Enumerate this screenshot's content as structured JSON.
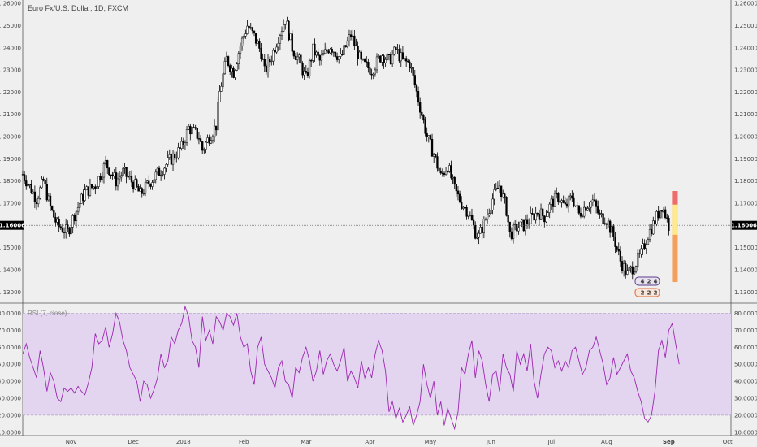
{
  "chart_data": [
    {
      "type": "candlestick",
      "title": "Euro Fx/U.S. Dollar, 1D, FXCM",
      "symbol": "Euro Fx/U.S. Dollar",
      "interval": "1D",
      "source": "FXCM",
      "ylim": [
        1.125,
        1.2615
      ],
      "y_ticks": [
        "1.13000",
        "1.14000",
        "1.15000",
        "1.16000",
        "1.17000",
        "1.18000",
        "1.19000",
        "1.20000",
        "1.21000",
        "1.22000",
        "1.23000",
        "1.24000",
        "1.25000",
        "1.26000"
      ],
      "y_tick_values": [
        1.13,
        1.14,
        1.15,
        1.16,
        1.17,
        1.18,
        1.19,
        1.2,
        1.21,
        1.22,
        1.23,
        1.24,
        1.25,
        1.26
      ],
      "x_ticks": [
        "Nov",
        "Dec",
        "2018",
        "Feb",
        "Mar",
        "Apr",
        "May",
        "Jun",
        "Jul",
        "Aug",
        "Sep",
        "Oct"
      ],
      "x_tick_index": [
        28,
        64,
        93,
        128,
        164,
        201,
        236,
        271,
        306,
        338,
        374,
        408
      ],
      "last_price": 1.16006,
      "last_price_label": "1.16006",
      "close_path": [
        [
          0,
          1.183
        ],
        [
          8,
          1.172
        ],
        [
          12,
          1.18
        ],
        [
          16,
          1.168
        ],
        [
          20,
          1.16
        ],
        [
          26,
          1.157
        ],
        [
          30,
          1.165
        ],
        [
          36,
          1.175
        ],
        [
          42,
          1.178
        ],
        [
          48,
          1.188
        ],
        [
          54,
          1.18
        ],
        [
          58,
          1.184
        ],
        [
          64,
          1.179
        ],
        [
          68,
          1.174
        ],
        [
          74,
          1.18
        ],
        [
          80,
          1.185
        ],
        [
          86,
          1.19
        ],
        [
          92,
          1.195
        ],
        [
          96,
          1.204
        ],
        [
          102,
          1.2
        ],
        [
          104,
          1.194
        ],
        [
          108,
          1.2
        ],
        [
          112,
          1.205
        ],
        [
          114,
          1.22
        ],
        [
          118,
          1.235
        ],
        [
          122,
          1.229
        ],
        [
          126,
          1.241
        ],
        [
          130,
          1.25
        ],
        [
          134,
          1.245
        ],
        [
          138,
          1.238
        ],
        [
          140,
          1.229
        ],
        [
          144,
          1.236
        ],
        [
          148,
          1.245
        ],
        [
          152,
          1.253
        ],
        [
          156,
          1.24
        ],
        [
          160,
          1.234
        ],
        [
          164,
          1.226
        ],
        [
          168,
          1.239
        ],
        [
          172,
          1.234
        ],
        [
          178,
          1.241
        ],
        [
          184,
          1.235
        ],
        [
          190,
          1.246
        ],
        [
          196,
          1.233
        ],
        [
          202,
          1.23
        ],
        [
          208,
          1.237
        ],
        [
          212,
          1.234
        ],
        [
          216,
          1.239
        ],
        [
          220,
          1.234
        ],
        [
          224,
          1.233
        ],
        [
          228,
          1.22
        ],
        [
          234,
          1.2
        ],
        [
          238,
          1.192
        ],
        [
          242,
          1.182
        ],
        [
          246,
          1.187
        ],
        [
          250,
          1.176
        ],
        [
          254,
          1.17
        ],
        [
          258,
          1.166
        ],
        [
          262,
          1.157
        ],
        [
          264,
          1.155
        ],
        [
          268,
          1.163
        ],
        [
          272,
          1.172
        ],
        [
          276,
          1.178
        ],
        [
          280,
          1.167
        ],
        [
          282,
          1.156
        ],
        [
          286,
          1.159
        ],
        [
          290,
          1.16
        ],
        [
          294,
          1.163
        ],
        [
          298,
          1.166
        ],
        [
          302,
          1.164
        ],
        [
          306,
          1.17
        ],
        [
          310,
          1.173
        ],
        [
          314,
          1.168
        ],
        [
          318,
          1.173
        ],
        [
          322,
          1.165
        ],
        [
          326,
          1.169
        ],
        [
          330,
          1.171
        ],
        [
          334,
          1.164
        ],
        [
          338,
          1.163
        ],
        [
          342,
          1.155
        ],
        [
          346,
          1.144
        ],
        [
          350,
          1.138
        ],
        [
          354,
          1.142
        ],
        [
          358,
          1.147
        ],
        [
          362,
          1.156
        ],
        [
          366,
          1.162
        ],
        [
          370,
          1.169
        ],
        [
          372,
          1.165
        ],
        [
          374,
          1.16
        ]
      ],
      "hist_bar": {
        "from": 1.1755,
        "to": 1.1345,
        "mark": 1.158
      },
      "badges": [
        [
          "4",
          "2",
          "4"
        ],
        [
          "2",
          "2",
          "2"
        ]
      ],
      "colors": {
        "candle": "#000000",
        "hist_red": "#f06b6b",
        "hist_yellow": "#ffe98a",
        "hist_orange": "#f5a05a",
        "price_line": "#555555"
      }
    },
    {
      "type": "line",
      "title": "RSI (7, close)",
      "ylim": [
        8.0,
        85.0
      ],
      "y_ticks": [
        "10.0000",
        "20.0000",
        "30.0000",
        "40.0000",
        "50.0000",
        "60.0000",
        "70.0000",
        "80.0000"
      ],
      "y_tick_values": [
        10,
        20,
        30,
        40,
        50,
        60,
        70,
        80
      ],
      "band": [
        20,
        80
      ],
      "colors": {
        "line": "#9c27b0",
        "band": "#e3d5f0"
      },
      "series": [
        {
          "x_step": 2,
          "values": [
            56,
            62,
            54,
            48,
            42,
            58,
            48,
            34,
            45,
            40,
            30,
            28,
            36,
            34,
            36,
            33,
            37,
            34,
            32,
            39,
            48,
            68,
            62,
            64,
            72,
            60,
            68,
            80,
            75,
            64,
            58,
            48,
            44,
            40,
            28,
            40,
            38,
            30,
            35,
            42,
            56,
            48,
            52,
            66,
            62,
            70,
            74,
            84,
            78,
            64,
            60,
            48,
            78,
            64,
            70,
            62,
            78,
            75,
            70,
            80,
            78,
            73,
            80,
            66,
            60,
            62,
            46,
            38,
            60,
            66,
            50,
            46,
            42,
            36,
            48,
            52,
            40,
            38,
            30,
            48,
            45,
            54,
            60,
            52,
            40,
            46,
            58,
            44,
            52,
            56,
            50,
            46,
            52,
            60,
            40,
            46,
            42,
            36,
            52,
            42,
            48,
            42,
            56,
            64,
            58,
            46,
            22,
            28,
            18,
            24,
            16,
            20,
            25,
            14,
            20,
            28,
            50,
            38,
            30,
            40,
            20,
            28,
            14,
            24,
            18,
            12,
            22,
            48,
            44,
            56,
            64,
            42,
            58,
            52,
            38,
            28,
            44,
            46,
            34,
            56,
            48,
            44,
            34,
            58,
            50,
            56,
            46,
            62,
            40,
            30,
            44,
            56,
            60,
            58,
            48,
            52,
            46,
            52,
            48,
            58,
            60,
            52,
            44,
            48,
            58,
            60,
            66,
            58,
            50,
            38,
            42,
            54,
            44,
            48,
            52,
            56,
            46,
            42,
            34,
            28,
            18,
            16,
            20,
            34,
            58,
            64,
            54,
            70,
            74,
            62,
            50
          ]
        }
      ]
    }
  ]
}
